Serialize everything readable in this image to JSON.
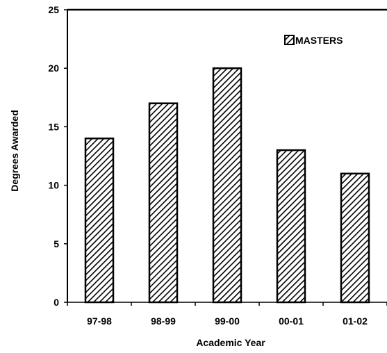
{
  "chart_data": {
    "type": "bar",
    "categories": [
      "97-98",
      "98-99",
      "99-00",
      "00-01",
      "01-02"
    ],
    "series": [
      {
        "name": "MASTERS",
        "values": [
          14,
          17,
          20,
          13,
          11
        ]
      }
    ],
    "title": "",
    "xlabel": "Academic Year",
    "ylabel": "Degrees Awarded",
    "ylim": [
      0,
      25
    ],
    "yticks": [
      "0",
      "5",
      "10",
      "15",
      "20",
      "25"
    ],
    "grid": false,
    "legend_position": "top-right",
    "bar_fill": "diagonal-hatch",
    "colors": {
      "bar_stroke": "#000000",
      "hatch": "#000000",
      "background": "#ffffff"
    }
  }
}
